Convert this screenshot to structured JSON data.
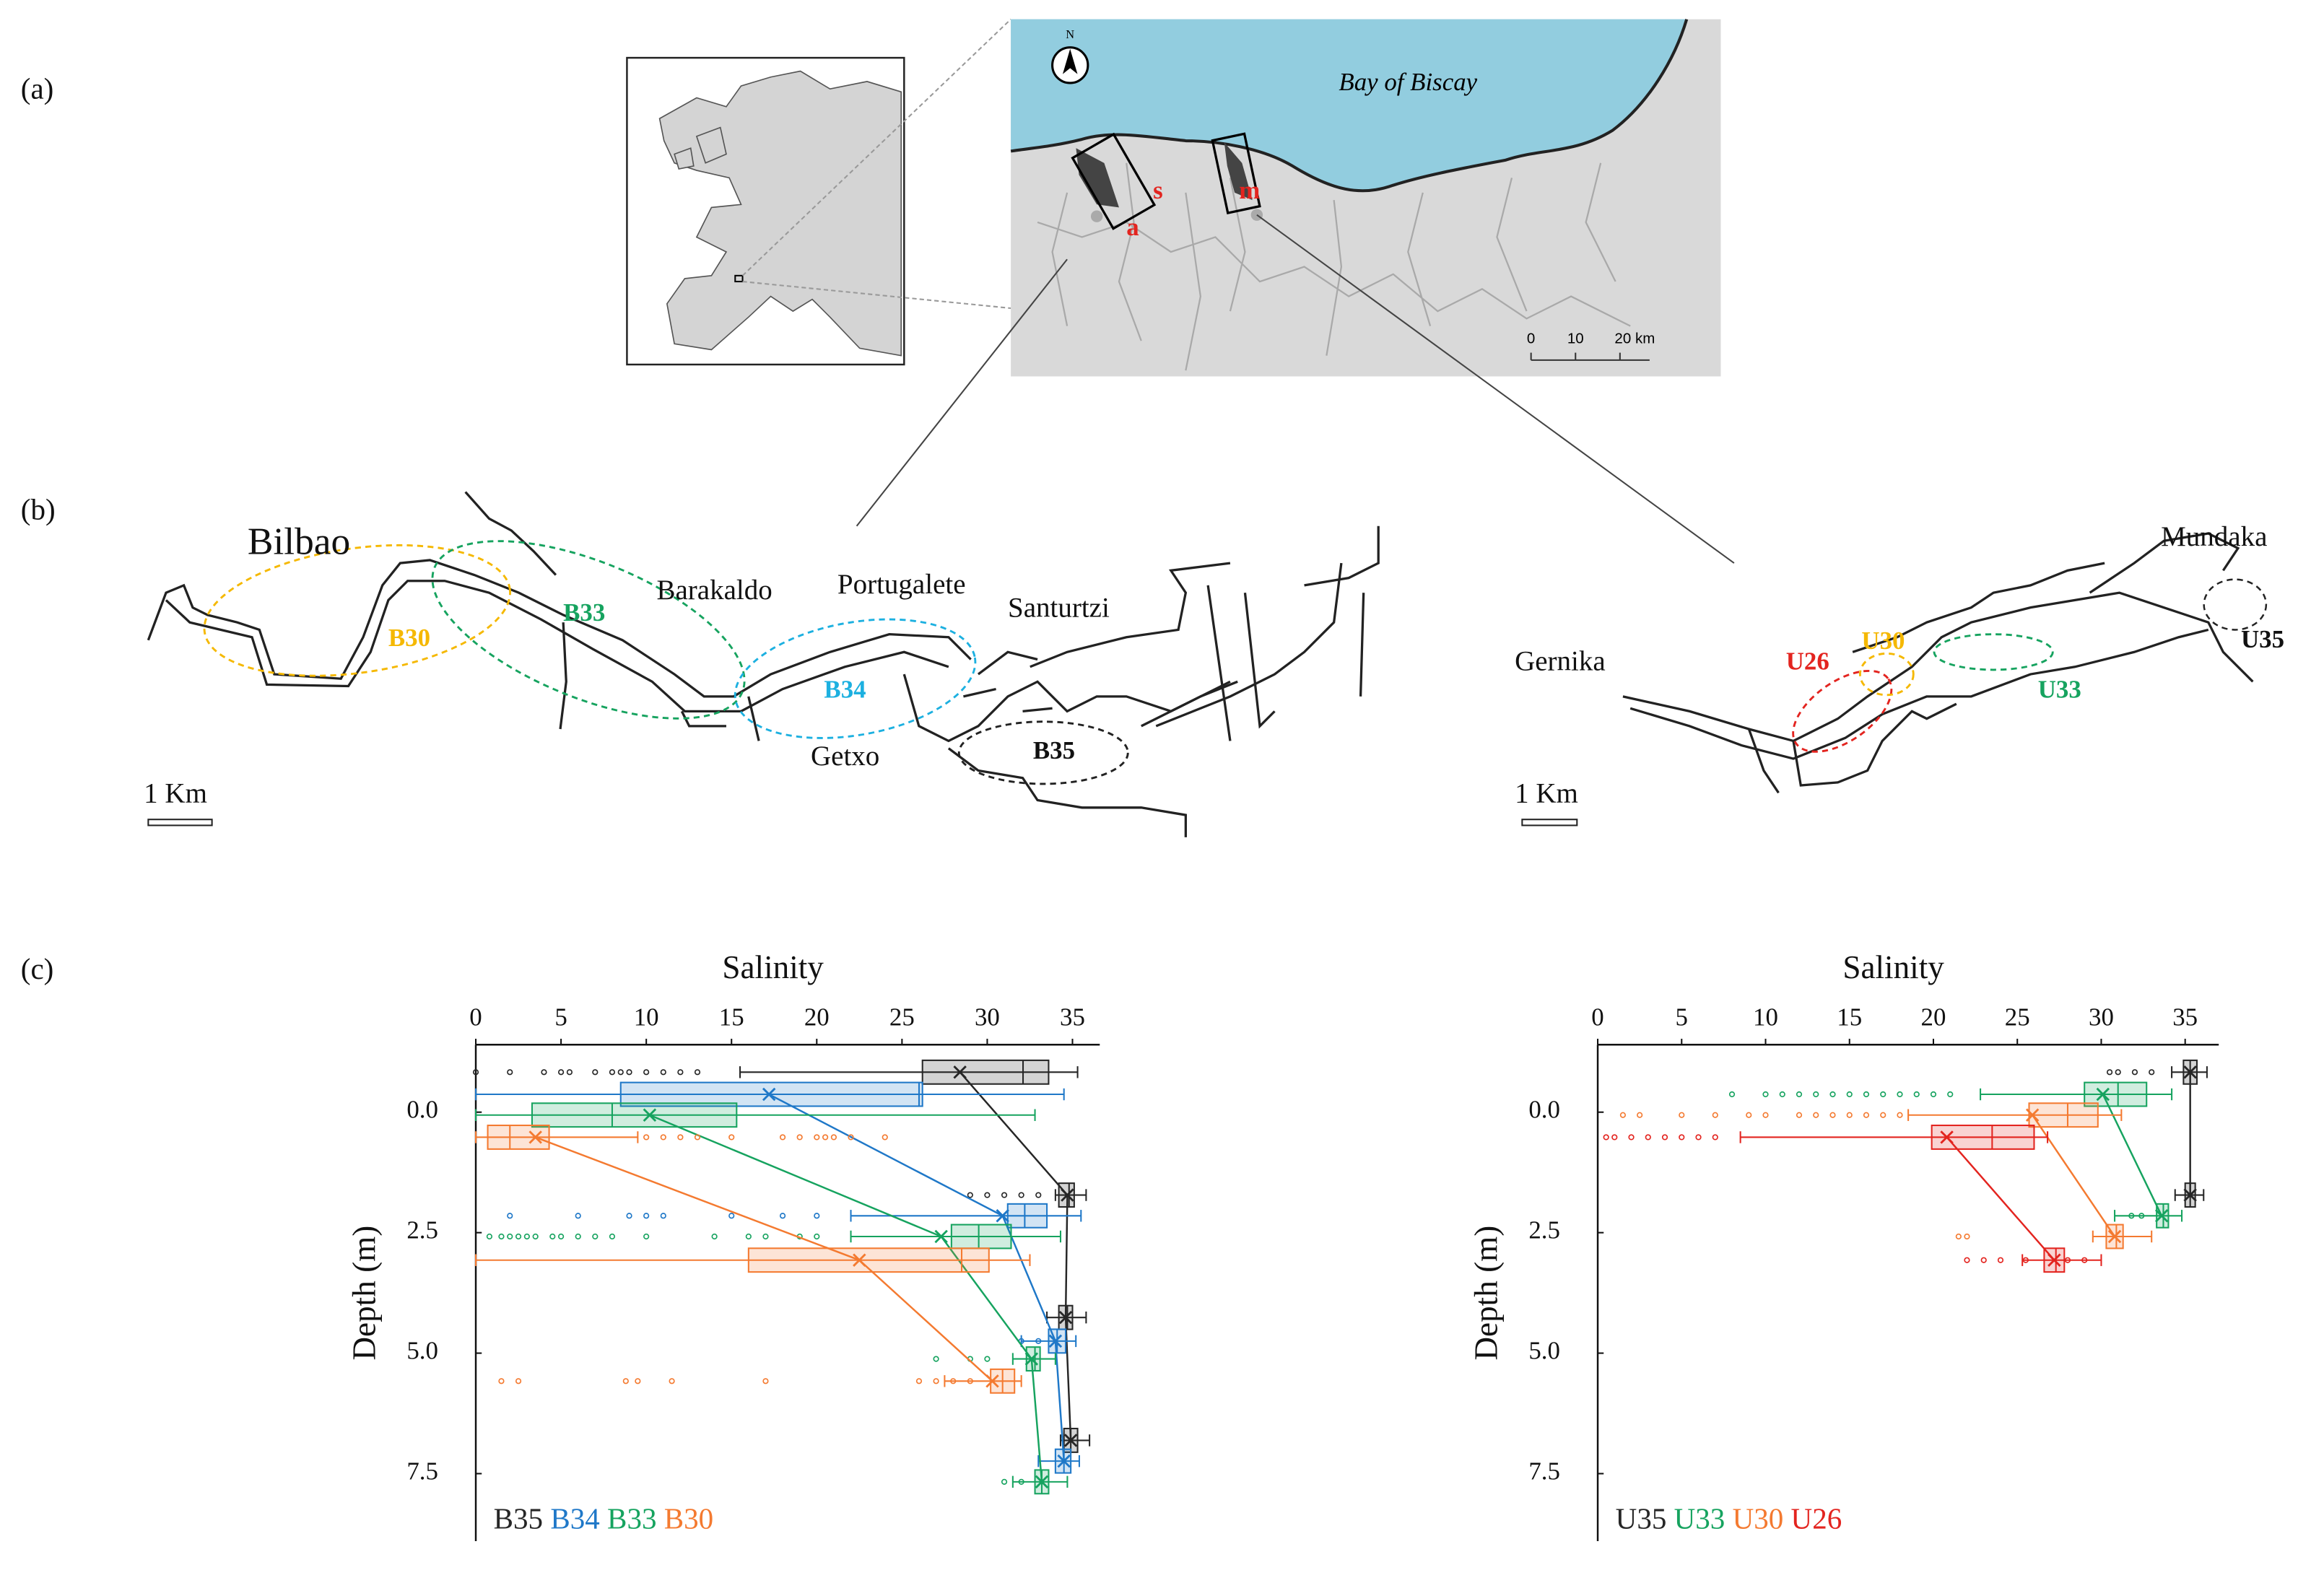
{
  "panel_labels": [
    "(a)",
    "(b)",
    "(c)"
  ],
  "map_a": {
    "sea_label": "Bay of Biscay",
    "site_labels": [
      "s",
      "a",
      "m"
    ],
    "scale_labels": [
      "0",
      "10",
      "20 km"
    ],
    "north": "N"
  },
  "map_b": {
    "bilbao": {
      "places": [
        "Bilbao",
        "Barakaldo",
        "Portugalete",
        "Santurtzi",
        "Getxo"
      ],
      "zones": [
        "B30",
        "B33",
        "B34",
        "B35"
      ],
      "scale": "1 Km"
    },
    "urdaibai": {
      "places": [
        "Gernika",
        "Mundaka"
      ],
      "zones": [
        "U26",
        "U30",
        "U33",
        "U35"
      ],
      "scale": "1 Km"
    }
  },
  "chart_data": [
    {
      "type": "box",
      "x_label": "Salinity",
      "y_label": "Depth (m)",
      "xlim": [
        0,
        36.6
      ],
      "xticks": [
        0,
        5,
        10,
        15,
        20,
        25,
        30,
        35
      ],
      "ylim": [
        -1.4,
        8.9
      ],
      "yticks": [
        {
          "value": 0,
          "label": "0.0"
        },
        {
          "value": 2.5,
          "label": "2.5"
        },
        {
          "value": 5,
          "label": "5.0"
        },
        {
          "value": 7.5,
          "label": "7.5"
        }
      ],
      "series": [
        {
          "name": "B35",
          "color": "#262626",
          "depths": [
            -0.83,
            1.72,
            4.26,
            6.81
          ],
          "min": [
            15.5,
            34,
            33.5,
            34.3
          ],
          "q1": [
            26.2,
            34.2,
            34.2,
            34.5
          ],
          "median": [
            32.1,
            34.8,
            34.7,
            34.9
          ],
          "q3": [
            33.6,
            35.1,
            35.0,
            35.3
          ],
          "max": [
            35.3,
            35.8,
            35.8,
            36.0
          ],
          "mean": [
            28.4,
            34.7,
            34.6,
            34.9
          ],
          "outliers": [
            [
              0,
              2,
              4,
              5,
              5.5,
              7,
              8,
              8.5,
              9,
              10,
              11,
              12,
              13
            ],
            [
              29,
              30,
              31,
              32,
              33
            ],
            [],
            []
          ]
        },
        {
          "name": "B34",
          "color": "#1f78c8",
          "depths": [
            -0.37,
            2.15,
            4.75,
            7.24
          ],
          "min": [
            0,
            22,
            32,
            33
          ],
          "q1": [
            8.5,
            31.2,
            33.6,
            34.0
          ],
          "median": [
            26.0,
            32.2,
            34.1,
            34.5
          ],
          "q3": [
            26.2,
            33.5,
            34.6,
            34.9
          ],
          "max": [
            34.5,
            35.5,
            35.2,
            35.4
          ],
          "mean": [
            17.2,
            30.9,
            34.0,
            34.5
          ],
          "outliers": [
            [],
            [
              2,
              6,
              9,
              10,
              11,
              15,
              18,
              20
            ],
            [
              32,
              33
            ],
            []
          ]
        },
        {
          "name": "B33",
          "color": "#16a35f",
          "depths": [
            0.06,
            2.58,
            5.12,
            7.67
          ],
          "min": [
            0,
            22,
            31.5,
            31.5
          ],
          "q1": [
            3.3,
            27.9,
            32.3,
            32.8
          ],
          "median": [
            8,
            29.5,
            32.8,
            33.2
          ],
          "q3": [
            15.3,
            31.4,
            33.1,
            33.6
          ],
          "max": [
            32.8,
            34.3,
            34,
            34.7
          ],
          "mean": [
            10.2,
            27.3,
            32.6,
            33.2
          ],
          "outliers": [
            [],
            [
              0.8,
              1.5,
              2,
              2.5,
              3,
              3.5,
              4.5,
              5,
              6,
              7,
              8,
              10,
              14,
              16,
              17,
              19,
              20
            ],
            [
              27,
              29,
              30
            ],
            [
              31,
              32
            ]
          ]
        },
        {
          "name": "B30",
          "color": "#f47a30",
          "depths": [
            0.52,
            3.07,
            5.58
          ],
          "min": [
            0,
            0,
            27.5
          ],
          "q1": [
            0.7,
            16,
            30.2
          ],
          "median": [
            2,
            28.5,
            30.9
          ],
          "q3": [
            4.3,
            30.1,
            31.6
          ],
          "max": [
            9.5,
            32.5,
            32
          ],
          "mean": [
            3.5,
            22.5,
            30.3
          ],
          "outliers": [
            [
              10,
              11,
              12,
              13,
              15,
              18,
              19,
              20,
              20.5,
              21,
              22,
              24
            ],
            [],
            [
              1.5,
              2.5,
              8.8,
              9.5,
              11.5,
              17,
              26,
              27,
              28,
              29
            ]
          ]
        }
      ]
    },
    {
      "type": "box",
      "x_label": "Salinity",
      "y_label": "Depth (m)",
      "xlim": [
        0,
        37
      ],
      "xticks": [
        0,
        5,
        10,
        15,
        20,
        25,
        30,
        35
      ],
      "ylim": [
        -1.4,
        8.9
      ],
      "yticks": [
        {
          "value": 0,
          "label": "0.0"
        },
        {
          "value": 2.5,
          "label": "2.5"
        },
        {
          "value": 5,
          "label": "5.0"
        },
        {
          "value": 7.5,
          "label": "7.5"
        }
      ],
      "series": [
        {
          "name": "U35",
          "color": "#262626",
          "depths": [
            -0.83,
            1.72
          ],
          "min": [
            34.2,
            34.4
          ],
          "q1": [
            34.9,
            35.0
          ],
          "median": [
            35.3,
            35.3
          ],
          "q3": [
            35.7,
            35.6
          ],
          "max": [
            36.3,
            36.1
          ],
          "mean": [
            35.3,
            35.3
          ],
          "outliers": [
            [
              30.5,
              31,
              32,
              33
            ],
            []
          ]
        },
        {
          "name": "U33",
          "color": "#16a35f",
          "depths": [
            -0.37,
            2.15
          ],
          "min": [
            22.8,
            30.8
          ],
          "q1": [
            29,
            33.3
          ],
          "median": [
            31,
            33.7
          ],
          "q3": [
            32.7,
            34
          ],
          "max": [
            34.2,
            34.8
          ],
          "mean": [
            30.1,
            33.6
          ],
          "outliers": [
            [
              8,
              10,
              11,
              12,
              13,
              14,
              15,
              16,
              17,
              18,
              19,
              20,
              21
            ],
            [
              31.8,
              32.4
            ]
          ]
        },
        {
          "name": "U30",
          "color": "#f47a30",
          "depths": [
            0.06,
            2.58
          ],
          "min": [
            18.5,
            29.5
          ],
          "q1": [
            25.7,
            30.3
          ],
          "median": [
            28,
            30.9
          ],
          "q3": [
            29.8,
            31.3
          ],
          "max": [
            31.2,
            33
          ],
          "mean": [
            25.9,
            30.8
          ],
          "outliers": [
            [
              1.5,
              2.5,
              5,
              7,
              9,
              10,
              12,
              13,
              14,
              15,
              16,
              17,
              18
            ],
            [
              21.5,
              22
            ]
          ]
        },
        {
          "name": "U26",
          "color": "#e3241f",
          "depths": [
            0.52,
            3.07
          ],
          "min": [
            8.5,
            25.3
          ],
          "q1": [
            19.9,
            26.6
          ],
          "median": [
            23.5,
            27.3
          ],
          "q3": [
            26,
            27.8
          ],
          "max": [
            26.8,
            30
          ],
          "mean": [
            20.8,
            27.2
          ],
          "outliers": [
            [
              0.5,
              1,
              2,
              3,
              4,
              5,
              6,
              7
            ],
            [
              22,
              23,
              24,
              25.5,
              28,
              29
            ]
          ]
        }
      ]
    }
  ]
}
